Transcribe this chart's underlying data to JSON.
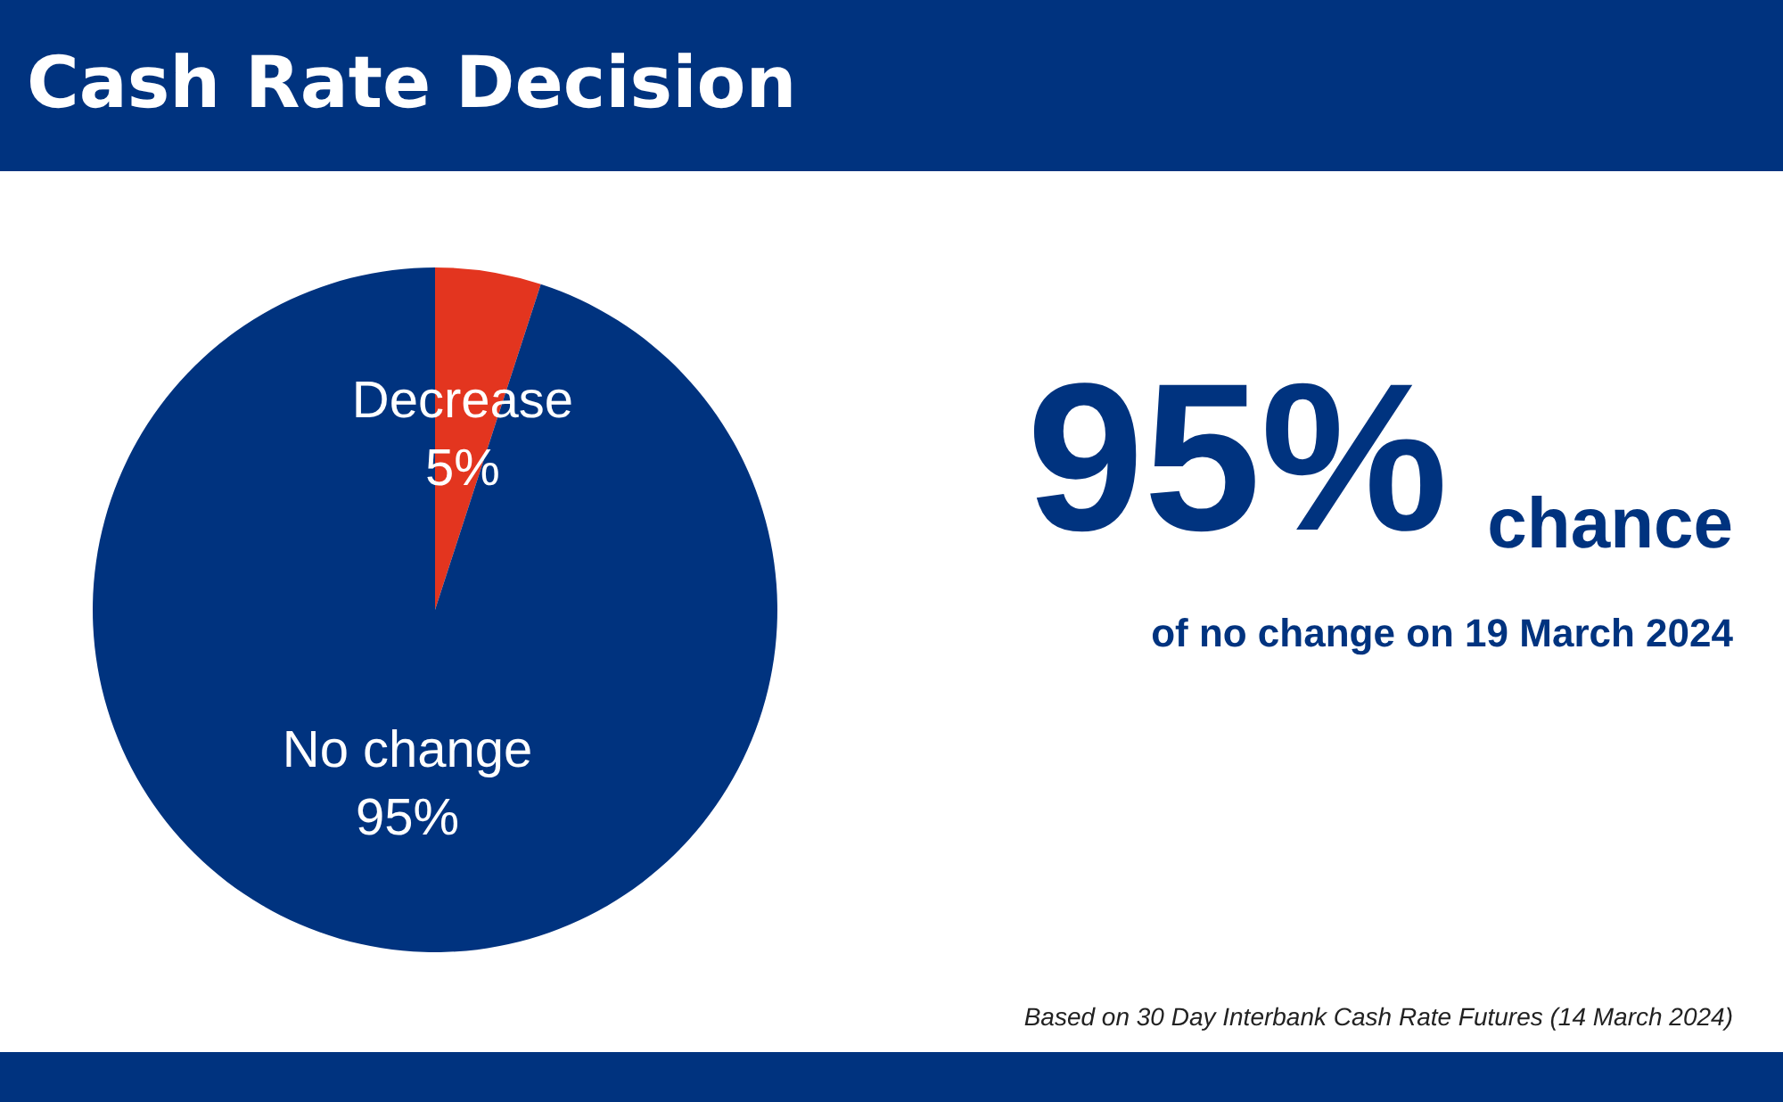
{
  "chart_data": {
    "type": "pie",
    "title": "Cash Rate Decision",
    "categories": [
      "Decrease",
      "No change"
    ],
    "values": [
      5,
      95
    ],
    "colors": [
      "#e3351f",
      "#00337f"
    ],
    "value_labels": [
      "5%",
      "95%"
    ],
    "annotations": [
      "95%",
      "chance",
      "of no change on 19 March 2024",
      "Based on 30 Day Interbank Cash Rate Futures (14 March 2024)"
    ]
  }
}
